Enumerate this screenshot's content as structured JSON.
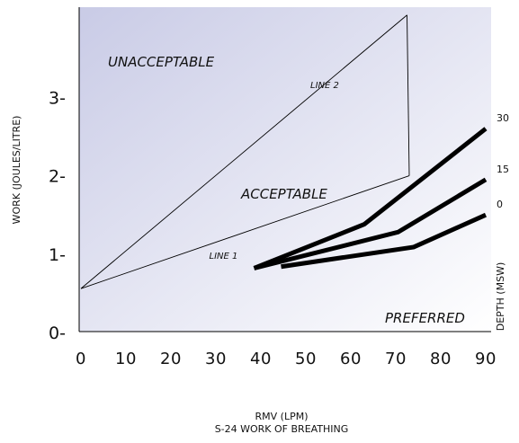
{
  "chart_data": {
    "type": "line",
    "title": "S-24  WORK OF BREATHING",
    "xlabel": "RMV (LPM)",
    "ylabel": "WORK (JOULES/LITRE)",
    "right_axis_label": "DEPTH (MSW)",
    "xlim": [
      0,
      90
    ],
    "ylim": [
      0,
      4.15
    ],
    "x_ticks": [
      0,
      10,
      20,
      30,
      40,
      50,
      60,
      70,
      80,
      90
    ],
    "x_tick_labels": [
      "0",
      "10",
      "20",
      "30",
      "40",
      "50",
      "60",
      "70",
      "80",
      "90"
    ],
    "y_ticks": [
      0,
      1,
      2,
      3
    ],
    "y_tick_labels": [
      "0-",
      "1-",
      "2-",
      "3-"
    ],
    "regions": {
      "unacceptable": "UNACCEPTABLE",
      "acceptable": "ACCEPTABLE",
      "preferred": "PREFERRED"
    },
    "boundary_lines": [
      {
        "name": "LINE 1",
        "x": [
          0,
          73
        ],
        "y": [
          0.56,
          2.0
        ]
      },
      {
        "name": "LINE 2",
        "x": [
          0,
          72.5
        ],
        "y": [
          0.56,
          4.05
        ]
      }
    ],
    "boundary_vertical": {
      "x": [
        72.5,
        73
      ],
      "y": [
        4.05,
        2.0
      ]
    },
    "series": [
      {
        "name": "30",
        "x": [
          38.5,
          63,
          90
        ],
        "y": [
          0.82,
          1.38,
          2.6
        ]
      },
      {
        "name": "15",
        "x": [
          38.5,
          70.5,
          90
        ],
        "y": [
          0.82,
          1.28,
          1.95
        ]
      },
      {
        "name": "0",
        "x": [
          44.5,
          74,
          90
        ],
        "y": [
          0.84,
          1.09,
          1.5
        ]
      }
    ],
    "gradient_colors": {
      "top_left": "#c9cbe6",
      "bottom_right": "#ffffff"
    },
    "line_color": "#000000"
  }
}
